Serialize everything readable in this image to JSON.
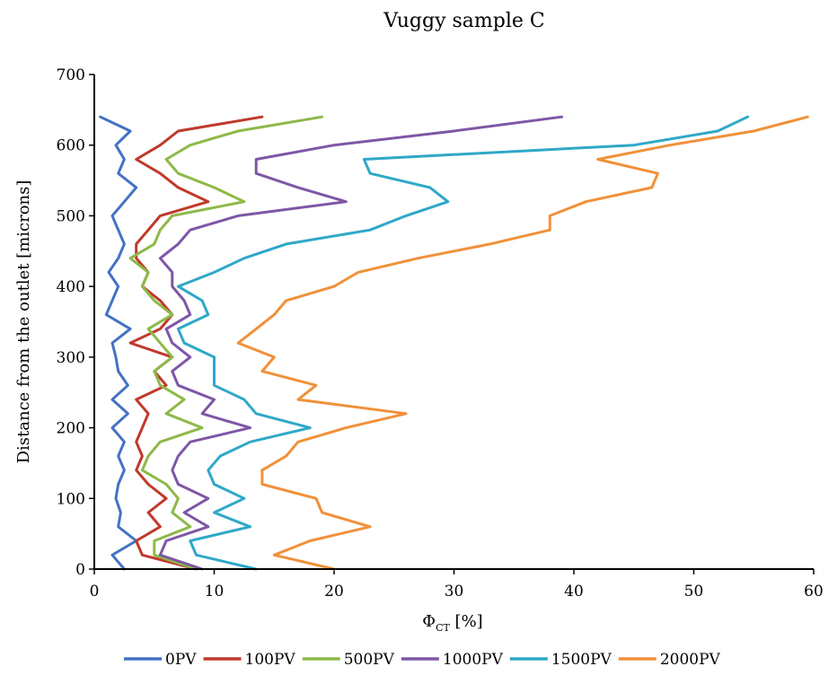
{
  "chart_data": {
    "type": "line",
    "title": "Vuggy sample  C",
    "xlabel": "Φ",
    "xlabel_sub": "CT",
    "xlabel_unit": " [%]",
    "ylabel": "Distance from the outlet [microns]",
    "xlim": [
      0,
      60
    ],
    "ylim": [
      0,
      700
    ],
    "xticks": [
      "0",
      "10",
      "20",
      "30",
      "40",
      "50",
      "60"
    ],
    "yticks": [
      "0",
      "100",
      "200",
      "300",
      "400",
      "500",
      "600",
      "700"
    ],
    "grid": false,
    "legend_position": "bottom",
    "series": [
      {
        "name": "0PV",
        "color": "#4472C4",
        "y": [
          0,
          20,
          40,
          60,
          80,
          100,
          120,
          140,
          160,
          180,
          200,
          220,
          240,
          260,
          280,
          300,
          320,
          340,
          360,
          380,
          400,
          420,
          440,
          460,
          480,
          500,
          520,
          540,
          560,
          580,
          600,
          620,
          640
        ],
        "x": [
          2.5,
          1.5,
          3.5,
          2.0,
          2.2,
          1.8,
          2.0,
          2.5,
          2.0,
          2.5,
          1.5,
          2.8,
          1.5,
          2.8,
          2.0,
          1.8,
          1.5,
          3.0,
          1.0,
          1.5,
          2.0,
          1.2,
          2.0,
          2.5,
          2.0,
          1.5,
          2.5,
          3.5,
          2.0,
          2.5,
          1.8,
          3.0,
          0.5
        ]
      },
      {
        "name": "100PV",
        "color": "#C0392B",
        "y": [
          0,
          20,
          40,
          60,
          80,
          100,
          120,
          140,
          160,
          180,
          200,
          220,
          240,
          260,
          280,
          300,
          320,
          340,
          360,
          380,
          400,
          420,
          440,
          460,
          480,
          500,
          520,
          540,
          560,
          580,
          600,
          620,
          640
        ],
        "x": [
          8.5,
          4.0,
          3.5,
          5.5,
          4.5,
          6.0,
          4.5,
          3.5,
          4.0,
          3.5,
          4.0,
          4.5,
          3.5,
          6.0,
          5.0,
          6.5,
          3.0,
          5.5,
          6.5,
          5.5,
          4.0,
          4.5,
          3.5,
          3.5,
          4.5,
          5.5,
          9.5,
          7.0,
          5.5,
          3.5,
          5.5,
          7.0,
          14.0
        ]
      },
      {
        "name": "500PV",
        "color": "#8DB948",
        "y": [
          0,
          20,
          40,
          60,
          80,
          100,
          120,
          140,
          160,
          180,
          200,
          220,
          240,
          260,
          280,
          300,
          320,
          340,
          360,
          380,
          400,
          420,
          440,
          460,
          480,
          500,
          520,
          540,
          560,
          580,
          600,
          620,
          640
        ],
        "x": [
          8.5,
          5.0,
          5.0,
          8.0,
          6.5,
          7.0,
          6.0,
          4.0,
          4.5,
          5.5,
          9.0,
          6.0,
          7.5,
          5.5,
          5.0,
          6.5,
          5.5,
          4.5,
          6.5,
          5.0,
          4.0,
          4.5,
          3.0,
          5.0,
          5.5,
          6.5,
          12.5,
          10.0,
          7.0,
          6.0,
          8.0,
          12.0,
          19.0
        ]
      },
      {
        "name": "1000PV",
        "color": "#7E57A6",
        "y": [
          0,
          20,
          40,
          60,
          80,
          100,
          120,
          140,
          160,
          180,
          200,
          220,
          240,
          260,
          280,
          300,
          320,
          340,
          360,
          380,
          400,
          420,
          440,
          460,
          480,
          500,
          520,
          540,
          560,
          580,
          600,
          620,
          640
        ],
        "x": [
          9.0,
          5.5,
          6.0,
          9.5,
          7.5,
          9.5,
          7.0,
          6.5,
          7.0,
          8.0,
          13.0,
          9.0,
          10.0,
          7.0,
          6.5,
          8.0,
          6.5,
          6.0,
          8.0,
          7.5,
          6.5,
          6.5,
          5.5,
          7.0,
          8.0,
          12.0,
          21.0,
          17.0,
          13.5,
          13.5,
          20.0,
          30.0,
          39.0
        ]
      },
      {
        "name": "1500PV",
        "color": "#2FA8C8",
        "y": [
          0,
          20,
          40,
          60,
          80,
          100,
          120,
          140,
          160,
          180,
          200,
          220,
          240,
          260,
          280,
          300,
          320,
          340,
          360,
          380,
          400,
          420,
          440,
          460,
          480,
          500,
          520,
          540,
          560,
          580,
          600,
          620,
          640
        ],
        "x": [
          13.5,
          8.5,
          8.0,
          13.0,
          10.0,
          12.5,
          10.0,
          9.5,
          10.5,
          13.0,
          18.0,
          13.5,
          12.5,
          10.0,
          10.0,
          10.0,
          7.5,
          7.0,
          9.5,
          9.0,
          7.0,
          10.0,
          12.5,
          16.0,
          23.0,
          26.0,
          29.5,
          28.0,
          23.0,
          22.5,
          45.0,
          52.0,
          54.5
        ]
      },
      {
        "name": "2000PV",
        "color": "#F0913A",
        "y": [
          0,
          20,
          40,
          60,
          80,
          100,
          120,
          140,
          160,
          180,
          200,
          220,
          240,
          260,
          280,
          300,
          320,
          340,
          360,
          380,
          400,
          420,
          440,
          460,
          480,
          500,
          520,
          540,
          560,
          580,
          600,
          620,
          640
        ],
        "x": [
          20.0,
          15.0,
          18.0,
          23.0,
          19.0,
          18.5,
          14.0,
          14.0,
          16.0,
          17.0,
          21.0,
          26.0,
          17.0,
          18.5,
          14.0,
          15.0,
          12.0,
          13.5,
          15.0,
          16.0,
          20.0,
          22.0,
          27.0,
          33.0,
          38.0,
          38.0,
          41.0,
          46.5,
          47.0,
          42.0,
          48.0,
          55.0,
          59.5
        ]
      }
    ]
  }
}
